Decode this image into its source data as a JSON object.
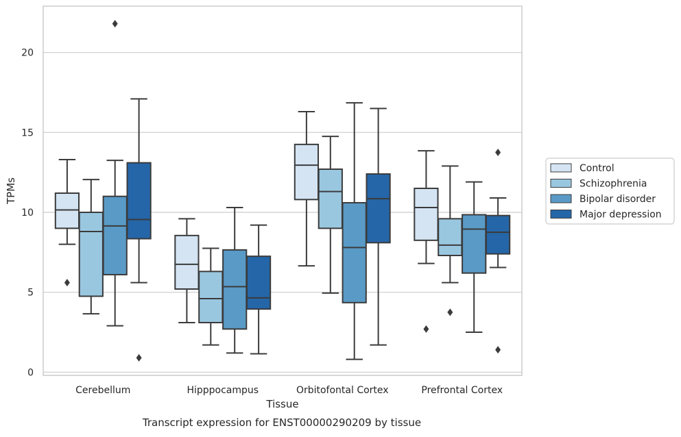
{
  "chart_data": {
    "type": "box",
    "xlabel": "Tissue",
    "ylabel": "TPMs",
    "caption": "Transcript expression for ENST00000290209 by tissue",
    "ylim": [
      -0.2,
      22.9
    ],
    "yticks": [
      0,
      5,
      10,
      15,
      20
    ],
    "grid": "horizontal",
    "legend_position": "right",
    "categories": [
      "Cerebellum",
      "Hipppocampus",
      "Orbitofontal Cortex",
      "Prefrontal Cortex"
    ],
    "series": [
      {
        "name": "Control",
        "color": "#d4e4f3",
        "boxes": [
          {
            "min": 8.0,
            "q1": 9.0,
            "median": 10.15,
            "q3": 11.2,
            "max": 13.3,
            "outliers": [
              5.6
            ]
          },
          {
            "min": 3.1,
            "q1": 5.2,
            "median": 6.75,
            "q3": 8.55,
            "max": 9.6,
            "outliers": []
          },
          {
            "min": 6.65,
            "q1": 10.8,
            "median": 12.95,
            "q3": 14.25,
            "max": 16.3,
            "outliers": []
          },
          {
            "min": 6.8,
            "q1": 8.25,
            "median": 10.3,
            "q3": 11.5,
            "max": 13.85,
            "outliers": [
              2.7
            ]
          }
        ]
      },
      {
        "name": "Schizophrenia",
        "color": "#9ac7e0",
        "boxes": [
          {
            "min": 3.65,
            "q1": 4.75,
            "median": 8.8,
            "q3": 10.0,
            "max": 12.05,
            "outliers": []
          },
          {
            "min": 1.7,
            "q1": 3.1,
            "median": 4.6,
            "q3": 6.3,
            "max": 7.75,
            "outliers": []
          },
          {
            "min": 4.95,
            "q1": 9.0,
            "median": 11.3,
            "q3": 12.7,
            "max": 14.75,
            "outliers": []
          },
          {
            "min": 5.6,
            "q1": 7.3,
            "median": 7.95,
            "q3": 9.6,
            "max": 12.9,
            "outliers": [
              3.75
            ]
          }
        ]
      },
      {
        "name": "Bipolar disorder",
        "color": "#5a9ac6",
        "boxes": [
          {
            "min": 2.9,
            "q1": 6.1,
            "median": 9.15,
            "q3": 11.0,
            "max": 13.25,
            "outliers": [
              21.8
            ]
          },
          {
            "min": 1.2,
            "q1": 2.7,
            "median": 5.35,
            "q3": 7.65,
            "max": 10.3,
            "outliers": []
          },
          {
            "min": 0.8,
            "q1": 4.35,
            "median": 7.8,
            "q3": 10.6,
            "max": 16.85,
            "outliers": []
          },
          {
            "min": 2.5,
            "q1": 6.2,
            "median": 8.95,
            "q3": 9.85,
            "max": 11.9,
            "outliers": []
          }
        ]
      },
      {
        "name": "Major depression",
        "color": "#2566a8",
        "boxes": [
          {
            "min": 5.6,
            "q1": 8.35,
            "median": 9.55,
            "q3": 13.1,
            "max": 17.1,
            "outliers": [
              0.9
            ]
          },
          {
            "min": 1.15,
            "q1": 3.95,
            "median": 4.65,
            "q3": 7.25,
            "max": 9.2,
            "outliers": []
          },
          {
            "min": 1.7,
            "q1": 8.1,
            "median": 10.85,
            "q3": 12.4,
            "max": 16.5,
            "outliers": []
          },
          {
            "min": 6.55,
            "q1": 7.4,
            "median": 8.75,
            "q3": 9.8,
            "max": 10.9,
            "outliers": [
              13.75,
              1.4
            ]
          }
        ]
      }
    ]
  }
}
